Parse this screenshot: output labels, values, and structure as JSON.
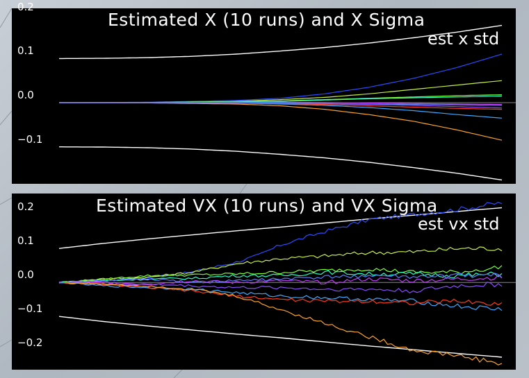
{
  "chart_data": [
    {
      "type": "line",
      "title": "Estimated X (10 runs) and X Sigma",
      "legend": [
        "est x std"
      ],
      "legend_position": "top-right",
      "xlabel": "",
      "ylabel": "",
      "xlim": [
        0,
        1
      ],
      "ylim": [
        -0.19,
        0.22
      ],
      "yticks": [
        0.2,
        0.1,
        0.0,
        -0.1
      ],
      "ytick_labels": [
        "0.2",
        "0.1",
        "0.0",
        "−0.1"
      ],
      "grid": false,
      "zero_line": true,
      "sigma": {
        "name": "est x std",
        "color": "#ffffff",
        "x": [
          0,
          0.1,
          0.2,
          0.3,
          0.4,
          0.5,
          0.6,
          0.7,
          0.8,
          0.9,
          1.0
        ],
        "values": [
          0.1,
          0.1005,
          0.102,
          0.105,
          0.11,
          0.117,
          0.125,
          0.135,
          0.147,
          0.16,
          0.175
        ]
      },
      "series": [
        {
          "color": "#2a4dff",
          "x": [
            0,
            0.2,
            0.4,
            0.5,
            0.6,
            0.7,
            0.8,
            0.9,
            1.0
          ],
          "values": [
            0,
            0.001,
            0.005,
            0.01,
            0.02,
            0.035,
            0.055,
            0.08,
            0.11
          ]
        },
        {
          "color": "#c8f046",
          "x": [
            0,
            0.2,
            0.4,
            0.5,
            0.6,
            0.7,
            0.8,
            0.9,
            1.0
          ],
          "values": [
            0,
            0.0005,
            0.003,
            0.007,
            0.012,
            0.02,
            0.03,
            0.04,
            0.05
          ]
        },
        {
          "color": "#7dff3a",
          "x": [
            0,
            0.2,
            0.4,
            0.5,
            0.6,
            0.7,
            0.8,
            0.9,
            1.0
          ],
          "values": [
            0,
            0.0003,
            0.002,
            0.004,
            0.007,
            0.01,
            0.013,
            0.016,
            0.018
          ]
        },
        {
          "color": "#2affc8",
          "x": [
            0,
            0.2,
            0.4,
            0.5,
            0.6,
            0.7,
            0.8,
            0.9,
            1.0
          ],
          "values": [
            0,
            0.0003,
            0.002,
            0.003,
            0.006,
            0.009,
            0.011,
            0.013,
            0.015
          ]
        },
        {
          "color": "#3fa9ff",
          "x": [
            0,
            0.2,
            0.4,
            0.5,
            0.6,
            0.7,
            0.8,
            0.9,
            1.0
          ],
          "values": [
            0,
            -0.0002,
            -0.001,
            -0.003,
            -0.006,
            -0.011,
            -0.018,
            -0.027,
            -0.035
          ]
        },
        {
          "color": "#8a4dff",
          "x": [
            0,
            0.2,
            0.4,
            0.5,
            0.6,
            0.7,
            0.8,
            0.9,
            1.0
          ],
          "values": [
            0,
            0,
            -0.0005,
            -0.001,
            -0.002,
            -0.004,
            -0.006,
            -0.009,
            -0.012
          ]
        },
        {
          "color": "#ff3d1a",
          "x": [
            0,
            0.2,
            0.4,
            0.5,
            0.6,
            0.7,
            0.8,
            0.9,
            1.0
          ],
          "values": [
            0,
            0,
            -0.001,
            -0.002,
            -0.004,
            -0.007,
            -0.01,
            -0.013,
            -0.015
          ]
        },
        {
          "color": "#ffa52a",
          "x": [
            0,
            0.2,
            0.4,
            0.5,
            0.6,
            0.7,
            0.8,
            0.9,
            1.0
          ],
          "values": [
            0,
            -0.0005,
            -0.003,
            -0.007,
            -0.015,
            -0.027,
            -0.042,
            -0.062,
            -0.085
          ]
        },
        {
          "color": "#c43cff",
          "x": [
            0,
            0.2,
            0.4,
            0.5,
            0.6,
            0.7,
            0.8,
            0.9,
            1.0
          ],
          "values": [
            0,
            0.0002,
            0.001,
            0.001,
            0.0005,
            -0.0005,
            -0.002,
            -0.003,
            -0.004
          ]
        },
        {
          "color": "#5a7dff",
          "x": [
            0,
            0.2,
            0.4,
            0.5,
            0.6,
            0.7,
            0.8,
            0.9,
            1.0
          ],
          "values": [
            0,
            0,
            -0.0003,
            -0.001,
            -0.002,
            -0.003,
            -0.004,
            -0.005,
            -0.006
          ]
        }
      ]
    },
    {
      "type": "line",
      "title": "Estimated VX (10 runs) and VX Sigma",
      "legend": [
        "est vx std"
      ],
      "legend_position": "top-right",
      "xlabel": "",
      "ylabel": "",
      "xlim": [
        0,
        1
      ],
      "ylim": [
        -0.265,
        0.27
      ],
      "yticks": [
        0.2,
        0.1,
        0.0,
        -0.1,
        -0.2
      ],
      "ytick_labels": [
        "0.2",
        "0.1",
        "0.0",
        "−0.1",
        "−0.2"
      ],
      "grid": false,
      "zero_line": true,
      "sigma": {
        "name": "est vx std",
        "color": "#ffffff",
        "x": [
          0,
          0.1,
          0.2,
          0.3,
          0.4,
          0.5,
          0.6,
          0.7,
          0.8,
          0.9,
          1.0
        ],
        "values": [
          0.1,
          0.115,
          0.128,
          0.14,
          0.152,
          0.163,
          0.175,
          0.187,
          0.198,
          0.209,
          0.22
        ]
      },
      "series": [
        {
          "color": "#2a4dff",
          "x": [
            0,
            0.1,
            0.2,
            0.3,
            0.4,
            0.45,
            0.5,
            0.6,
            0.7,
            0.8,
            0.9,
            1.0
          ],
          "values": [
            0,
            0.005,
            0.015,
            0.03,
            0.06,
            0.08,
            0.11,
            0.15,
            0.185,
            0.2,
            0.215,
            0.235
          ]
        },
        {
          "color": "#c8f046",
          "x": [
            0,
            0.1,
            0.2,
            0.3,
            0.4,
            0.5,
            0.6,
            0.7,
            0.8,
            0.9,
            1.0
          ],
          "values": [
            0,
            0.01,
            0.015,
            0.03,
            0.055,
            0.07,
            0.078,
            0.088,
            0.09,
            0.1,
            0.1
          ]
        },
        {
          "color": "#7dff3a",
          "x": [
            0,
            0.1,
            0.2,
            0.3,
            0.4,
            0.5,
            0.6,
            0.7,
            0.8,
            0.9,
            1.0
          ],
          "values": [
            0,
            0.01,
            0.02,
            0.022,
            0.025,
            0.03,
            0.035,
            0.04,
            0.03,
            0.03,
            0.045
          ]
        },
        {
          "color": "#2affc8",
          "x": [
            0,
            0.1,
            0.2,
            0.3,
            0.4,
            0.5,
            0.6,
            0.7,
            0.8,
            0.9,
            1.0
          ],
          "values": [
            0,
            0.005,
            0.01,
            0.012,
            0.02,
            0.02,
            0.03,
            0.025,
            0.025,
            0.02,
            0.025
          ]
        },
        {
          "color": "#3fa9ff",
          "x": [
            0,
            0.1,
            0.2,
            0.3,
            0.4,
            0.5,
            0.6,
            0.7,
            0.8,
            0.9,
            1.0
          ],
          "values": [
            0,
            -0.01,
            -0.015,
            -0.02,
            -0.03,
            -0.04,
            -0.045,
            -0.05,
            -0.055,
            -0.07,
            -0.08
          ]
        },
        {
          "color": "#8a4dff",
          "x": [
            0,
            0.1,
            0.2,
            0.3,
            0.4,
            0.5,
            0.6,
            0.7,
            0.8,
            0.9,
            1.0
          ],
          "values": [
            0,
            -0.005,
            -0.005,
            -0.01,
            -0.015,
            -0.015,
            -0.02,
            -0.02,
            -0.025,
            -0.01,
            -0.005
          ]
        },
        {
          "color": "#ff3d1a",
          "x": [
            0,
            0.1,
            0.2,
            0.3,
            0.4,
            0.5,
            0.6,
            0.7,
            0.8,
            0.9,
            1.0
          ],
          "values": [
            0,
            -0.005,
            -0.015,
            -0.025,
            -0.04,
            -0.05,
            -0.055,
            -0.055,
            -0.06,
            -0.055,
            -0.065
          ]
        },
        {
          "color": "#ffa52a",
          "x": [
            0,
            0.1,
            0.2,
            0.3,
            0.4,
            0.5,
            0.6,
            0.7,
            0.8,
            0.9,
            1.0
          ],
          "values": [
            0,
            -0.005,
            -0.01,
            -0.02,
            -0.04,
            -0.08,
            -0.12,
            -0.16,
            -0.2,
            -0.215,
            -0.24
          ]
        },
        {
          "color": "#c43cff",
          "x": [
            0,
            0.1,
            0.2,
            0.3,
            0.4,
            0.5,
            0.6,
            0.7,
            0.8,
            0.9,
            1.0
          ],
          "values": [
            0,
            0.0,
            -0.005,
            0.005,
            0.0,
            0.005,
            0.0,
            0.01,
            0.005,
            0.01,
            0.015
          ]
        },
        {
          "color": "#5a7dff",
          "x": [
            0,
            0.1,
            0.2,
            0.3,
            0.4,
            0.5,
            0.6,
            0.7,
            0.8,
            0.9,
            1.0
          ],
          "values": [
            0,
            0.005,
            0.01,
            0.0,
            0.005,
            0.01,
            0.015,
            0.02,
            0.015,
            0.02,
            0.02
          ]
        }
      ]
    }
  ]
}
